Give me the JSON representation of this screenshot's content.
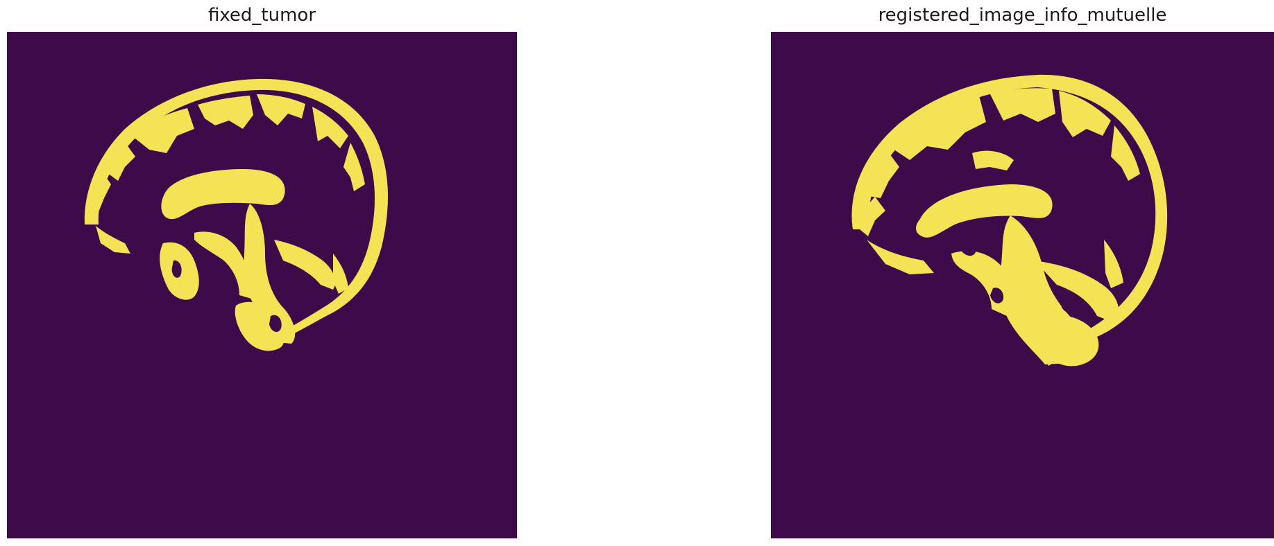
{
  "colors": {
    "background": "#3d0a4a",
    "mask": "#f5e255"
  },
  "panels": [
    {
      "title": "fixed_tumor"
    },
    {
      "title": "registered_image_info_mutuelle"
    }
  ]
}
